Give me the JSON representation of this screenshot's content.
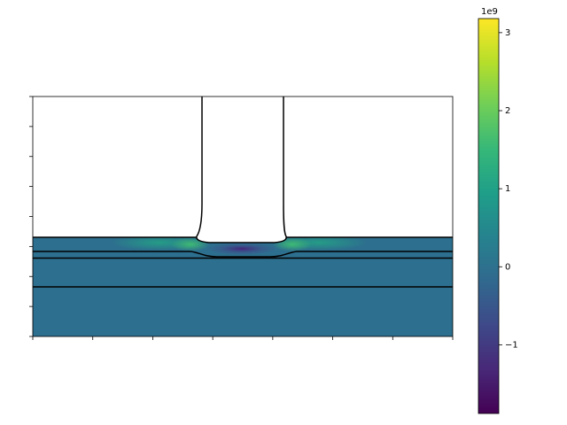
{
  "chart_data": {
    "type": "field",
    "colorbar": {
      "lim": [
        -1.88,
        3.18
      ],
      "ticks": [
        {
          "value": -1,
          "label": "−1"
        },
        0,
        1,
        2,
        3
      ],
      "offset_label": "1e9",
      "colormap": "viridis"
    }
  }
}
